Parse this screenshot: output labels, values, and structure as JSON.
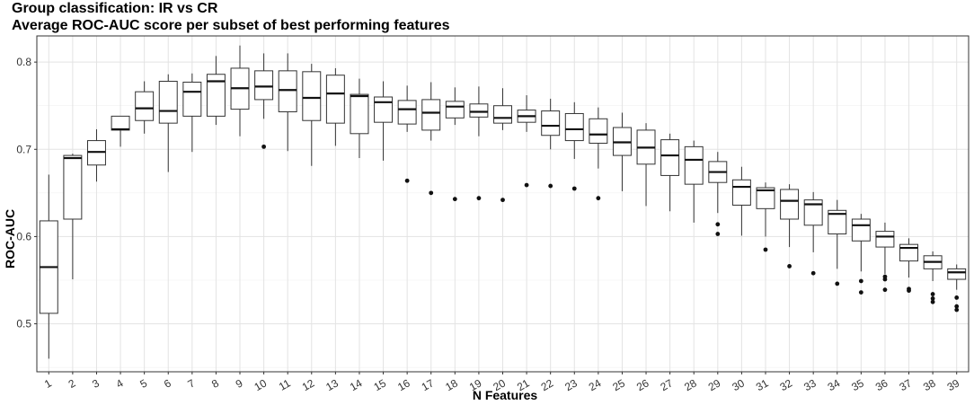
{
  "chart_data": {
    "type": "boxplot",
    "title": "Group classification: IR vs CR",
    "subtitle": "Average ROC-AUC score per subset of best performing features",
    "xlabel": "N Features",
    "ylabel": "ROC-AUC",
    "ylim": [
      0.445,
      0.83
    ],
    "yticks": [
      "0.5",
      "0.6",
      "0.7",
      "0.8"
    ],
    "grid": true,
    "categories": [
      "1",
      "2",
      "3",
      "4",
      "5",
      "6",
      "7",
      "8",
      "9",
      "10",
      "11",
      "12",
      "13",
      "14",
      "15",
      "16",
      "17",
      "18",
      "19",
      "20",
      "21",
      "22",
      "23",
      "24",
      "25",
      "26",
      "27",
      "28",
      "29",
      "30",
      "31",
      "32",
      "33",
      "34",
      "35",
      "36",
      "37",
      "38",
      "39"
    ],
    "boxes": [
      {
        "x": "1",
        "min": 0.46,
        "q1": 0.512,
        "median": 0.565,
        "q3": 0.618,
        "max": 0.671,
        "outliers": []
      },
      {
        "x": "2",
        "min": 0.551,
        "q1": 0.62,
        "median": 0.69,
        "q3": 0.693,
        "max": 0.695,
        "outliers": []
      },
      {
        "x": "3",
        "min": 0.663,
        "q1": 0.682,
        "median": 0.697,
        "q3": 0.71,
        "max": 0.723,
        "outliers": []
      },
      {
        "x": "4",
        "min": 0.703,
        "q1": 0.722,
        "median": 0.723,
        "q3": 0.738,
        "max": 0.738,
        "outliers": []
      },
      {
        "x": "5",
        "min": 0.718,
        "q1": 0.733,
        "median": 0.747,
        "q3": 0.766,
        "max": 0.778,
        "outliers": []
      },
      {
        "x": "6",
        "min": 0.674,
        "q1": 0.73,
        "median": 0.744,
        "q3": 0.778,
        "max": 0.786,
        "outliers": []
      },
      {
        "x": "7",
        "min": 0.697,
        "q1": 0.738,
        "median": 0.766,
        "q3": 0.777,
        "max": 0.787,
        "outliers": []
      },
      {
        "x": "8",
        "min": 0.728,
        "q1": 0.738,
        "median": 0.778,
        "q3": 0.786,
        "max": 0.807,
        "outliers": []
      },
      {
        "x": "9",
        "min": 0.715,
        "q1": 0.746,
        "median": 0.77,
        "q3": 0.793,
        "max": 0.819,
        "outliers": []
      },
      {
        "x": "10",
        "min": 0.735,
        "q1": 0.757,
        "median": 0.772,
        "q3": 0.79,
        "max": 0.81,
        "outliers": [
          0.703
        ]
      },
      {
        "x": "11",
        "min": 0.698,
        "q1": 0.743,
        "median": 0.768,
        "q3": 0.79,
        "max": 0.81,
        "outliers": []
      },
      {
        "x": "12",
        "min": 0.681,
        "q1": 0.733,
        "median": 0.759,
        "q3": 0.789,
        "max": 0.798,
        "outliers": []
      },
      {
        "x": "13",
        "min": 0.704,
        "q1": 0.73,
        "median": 0.764,
        "q3": 0.785,
        "max": 0.793,
        "outliers": []
      },
      {
        "x": "14",
        "min": 0.69,
        "q1": 0.718,
        "median": 0.761,
        "q3": 0.763,
        "max": 0.781,
        "outliers": []
      },
      {
        "x": "15",
        "min": 0.687,
        "q1": 0.731,
        "median": 0.754,
        "q3": 0.76,
        "max": 0.778,
        "outliers": []
      },
      {
        "x": "16",
        "min": 0.72,
        "q1": 0.729,
        "median": 0.746,
        "q3": 0.756,
        "max": 0.773,
        "outliers": [
          0.664
        ]
      },
      {
        "x": "17",
        "min": 0.71,
        "q1": 0.722,
        "median": 0.742,
        "q3": 0.757,
        "max": 0.777,
        "outliers": [
          0.65
        ]
      },
      {
        "x": "18",
        "min": 0.728,
        "q1": 0.736,
        "median": 0.749,
        "q3": 0.755,
        "max": 0.771,
        "outliers": [
          0.643
        ]
      },
      {
        "x": "19",
        "min": 0.715,
        "q1": 0.737,
        "median": 0.743,
        "q3": 0.752,
        "max": 0.772,
        "outliers": [
          0.644
        ]
      },
      {
        "x": "20",
        "min": 0.722,
        "q1": 0.73,
        "median": 0.736,
        "q3": 0.75,
        "max": 0.77,
        "outliers": [
          0.642
        ]
      },
      {
        "x": "21",
        "min": 0.72,
        "q1": 0.731,
        "median": 0.738,
        "q3": 0.745,
        "max": 0.762,
        "outliers": [
          0.659
        ]
      },
      {
        "x": "22",
        "min": 0.7,
        "q1": 0.716,
        "median": 0.727,
        "q3": 0.744,
        "max": 0.758,
        "outliers": [
          0.658
        ]
      },
      {
        "x": "23",
        "min": 0.689,
        "q1": 0.71,
        "median": 0.723,
        "q3": 0.741,
        "max": 0.754,
        "outliers": [
          0.655
        ]
      },
      {
        "x": "24",
        "min": 0.678,
        "q1": 0.707,
        "median": 0.717,
        "q3": 0.735,
        "max": 0.748,
        "outliers": [
          0.644
        ]
      },
      {
        "x": "25",
        "min": 0.652,
        "q1": 0.693,
        "median": 0.708,
        "q3": 0.725,
        "max": 0.742,
        "outliers": []
      },
      {
        "x": "26",
        "min": 0.635,
        "q1": 0.683,
        "median": 0.702,
        "q3": 0.722,
        "max": 0.73,
        "outliers": []
      },
      {
        "x": "27",
        "min": 0.629,
        "q1": 0.67,
        "median": 0.693,
        "q3": 0.711,
        "max": 0.718,
        "outliers": []
      },
      {
        "x": "28",
        "min": 0.616,
        "q1": 0.66,
        "median": 0.688,
        "q3": 0.703,
        "max": 0.71,
        "outliers": []
      },
      {
        "x": "29",
        "min": 0.627,
        "q1": 0.662,
        "median": 0.674,
        "q3": 0.686,
        "max": 0.697,
        "outliers": [
          0.614,
          0.603
        ]
      },
      {
        "x": "30",
        "min": 0.601,
        "q1": 0.636,
        "median": 0.657,
        "q3": 0.665,
        "max": 0.68,
        "outliers": []
      },
      {
        "x": "31",
        "min": 0.6,
        "q1": 0.632,
        "median": 0.653,
        "q3": 0.656,
        "max": 0.662,
        "outliers": [
          0.585
        ]
      },
      {
        "x": "32",
        "min": 0.588,
        "q1": 0.62,
        "median": 0.641,
        "q3": 0.654,
        "max": 0.66,
        "outliers": [
          0.566
        ]
      },
      {
        "x": "33",
        "min": 0.582,
        "q1": 0.613,
        "median": 0.637,
        "q3": 0.642,
        "max": 0.651,
        "outliers": [
          0.558
        ]
      },
      {
        "x": "34",
        "min": 0.563,
        "q1": 0.603,
        "median": 0.626,
        "q3": 0.63,
        "max": 0.642,
        "outliers": [
          0.546
        ]
      },
      {
        "x": "35",
        "min": 0.56,
        "q1": 0.595,
        "median": 0.613,
        "q3": 0.62,
        "max": 0.626,
        "outliers": [
          0.549,
          0.536
        ]
      },
      {
        "x": "36",
        "min": 0.557,
        "q1": 0.588,
        "median": 0.6,
        "q3": 0.606,
        "max": 0.616,
        "outliers": [
          0.554,
          0.551,
          0.539
        ]
      },
      {
        "x": "37",
        "min": 0.553,
        "q1": 0.572,
        "median": 0.587,
        "q3": 0.591,
        "max": 0.598,
        "outliers": [
          0.54,
          0.538
        ]
      },
      {
        "x": "38",
        "min": 0.549,
        "q1": 0.563,
        "median": 0.571,
        "q3": 0.578,
        "max": 0.583,
        "outliers": [
          0.534,
          0.529,
          0.525
        ]
      },
      {
        "x": "39",
        "min": 0.539,
        "q1": 0.551,
        "median": 0.559,
        "q3": 0.563,
        "max": 0.568,
        "outliers": [
          0.53,
          0.52,
          0.516
        ]
      }
    ]
  }
}
